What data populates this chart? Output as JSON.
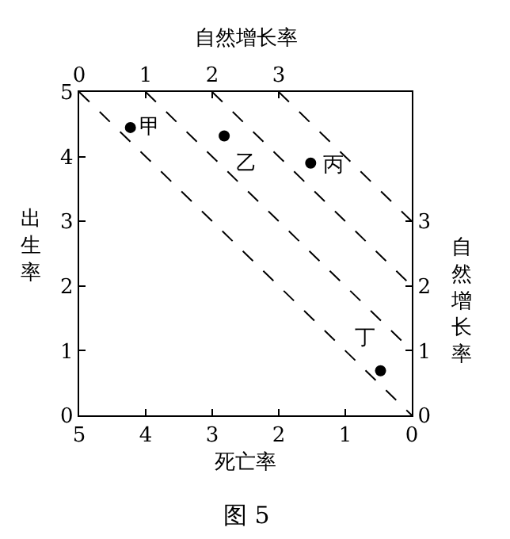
{
  "chart_data": {
    "type": "scatter",
    "xlabel": "死亡率",
    "ylabel": "出生率",
    "x2label": "自然增长率",
    "y2label": "自然增长率",
    "series": [
      {
        "color": "#000000",
        "marker": "circle",
        "x": [
          4.23,
          2.82,
          1.52,
          0.47
        ],
        "values": [
          4.45,
          4.32,
          3.9,
          0.69
        ]
      },
      {
        "type": "line",
        "color": "#000000",
        "line_style": "dashed",
        "marker": "none",
        "x": [
          5,
          0
        ],
        "values": [
          5,
          0
        ]
      },
      {
        "type": "line",
        "color": "#000000",
        "line_style": "dashed",
        "marker": "none",
        "x": [
          4,
          0
        ],
        "values": [
          5,
          1
        ]
      },
      {
        "type": "line",
        "color": "#000000",
        "line_style": "dashed",
        "marker": "none",
        "x": [
          3,
          0
        ],
        "values": [
          5,
          2
        ]
      },
      {
        "type": "line",
        "color": "#000000",
        "line_style": "dashed",
        "marker": "none",
        "x": [
          2,
          0
        ],
        "values": [
          5,
          3
        ]
      }
    ],
    "annotations": [
      {
        "text": "甲",
        "x": 4.23,
        "y": 4.45
      },
      {
        "text": "乙",
        "x": 2.82,
        "y": 4.32
      },
      {
        "text": "丙",
        "x": 1.52,
        "y": 3.9
      },
      {
        "text": "丁",
        "x": 0.47,
        "y": 0.69
      },
      "图 5"
    ],
    "xlim": [
      5,
      0
    ],
    "xticks": [
      5,
      4,
      3,
      2,
      1,
      0
    ],
    "ylim": [
      0,
      5
    ],
    "yticks": [
      0,
      1,
      2,
      3,
      4,
      5
    ],
    "x2lim": [
      0,
      5
    ],
    "x2ticks": [
      0,
      1,
      2,
      3
    ],
    "y2lim": [
      0,
      5
    ],
    "y2ticks": [
      0,
      1,
      2,
      3
    ]
  }
}
